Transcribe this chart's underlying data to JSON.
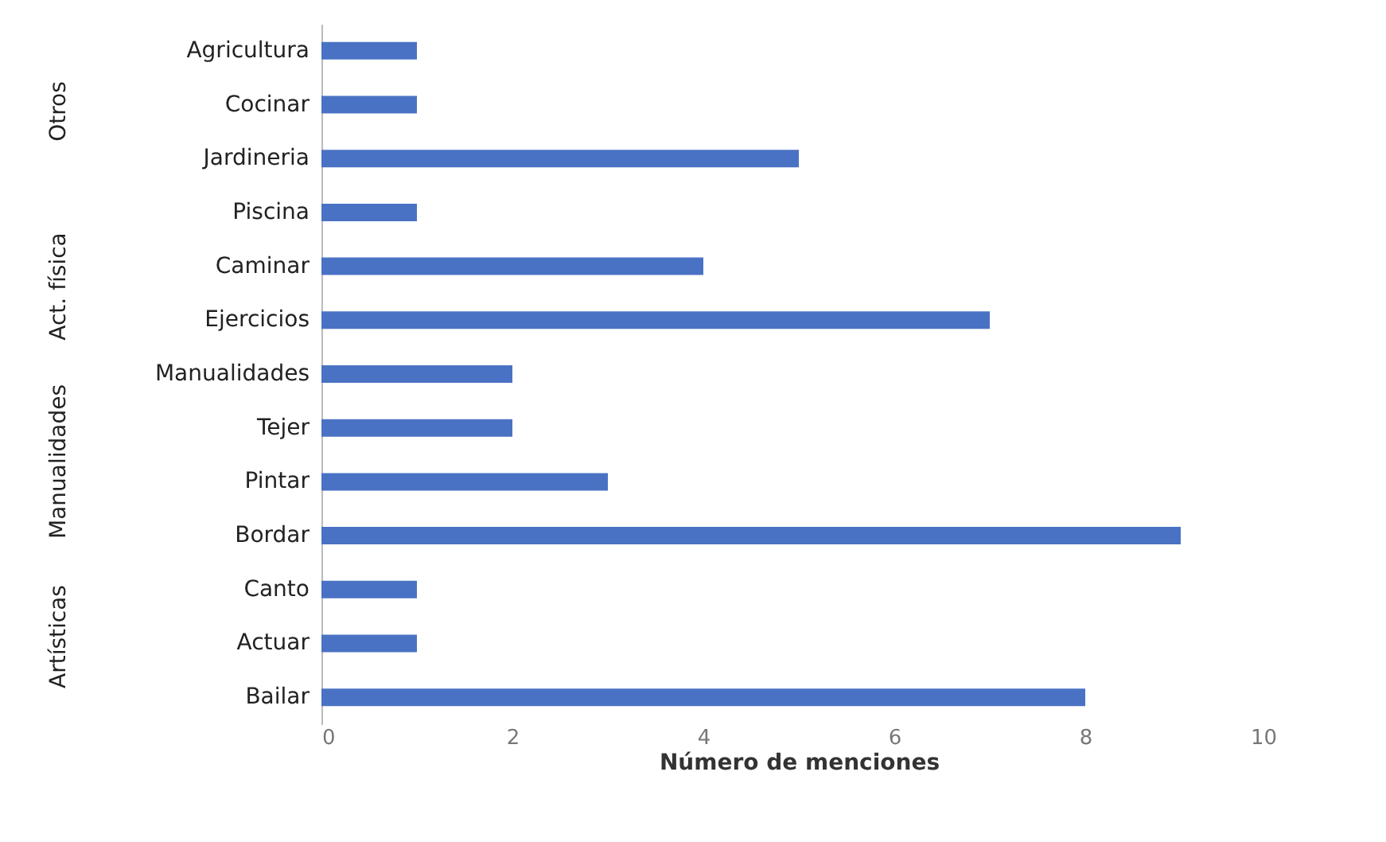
{
  "chart_data": {
    "type": "bar",
    "orientation": "horizontal",
    "xlabel": "Número de menciones",
    "categories": [
      "Agricultura",
      "Cocinar",
      "Jardineria",
      "Piscina",
      "Caminar",
      "Ejercicios",
      "Manualidades",
      "Tejer",
      "Pintar",
      "Bordar",
      "Canto",
      "Actuar",
      "Bailar"
    ],
    "values": [
      1,
      1,
      5,
      1,
      4,
      7,
      2,
      2,
      3,
      9,
      1,
      1,
      8
    ],
    "color": "#4a72c4",
    "xlim": [
      0,
      10
    ],
    "xticks": [
      0,
      2,
      4,
      6,
      8,
      10
    ],
    "grid": false,
    "annotations": [
      "Otros",
      "Act. física",
      "Manualidades",
      "Artísticas"
    ]
  }
}
